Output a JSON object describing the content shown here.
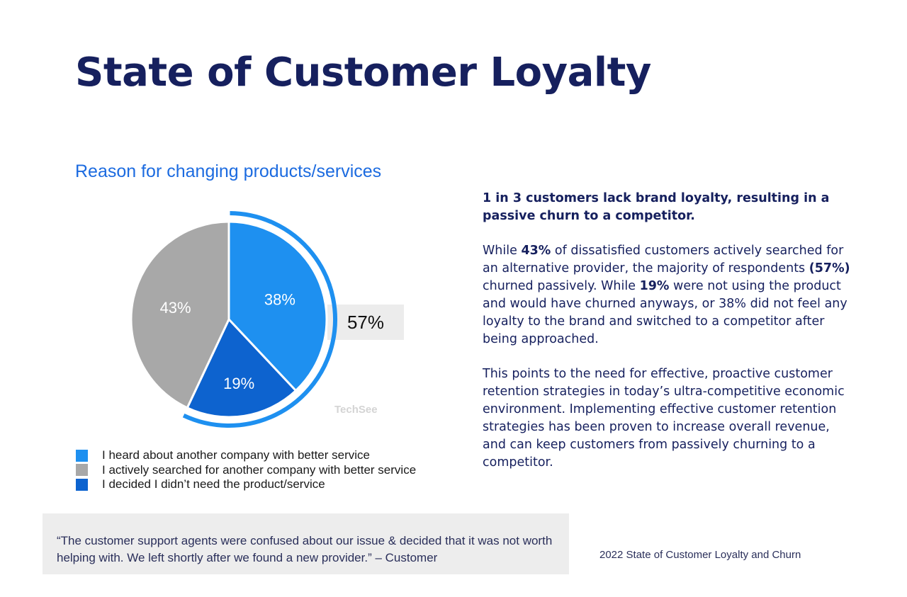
{
  "page": {
    "title": "State of Customer Loyalty"
  },
  "chart_data": {
    "type": "pie",
    "title": "Reason for changing products/services",
    "slices": [
      {
        "label": "I heard about another company with better service",
        "value": 38,
        "display": "38%",
        "color": "#1e90f0"
      },
      {
        "label": "I decided I didn’t need the product/service",
        "value": 19,
        "display": "19%",
        "color": "#0d63cf"
      },
      {
        "label": "I actively searched for another company with better service",
        "value": 43,
        "display": "43%",
        "color": "#a8a8a8"
      }
    ],
    "legend_order": [
      0,
      2,
      1
    ],
    "highlight": {
      "value": 57,
      "display": "57%",
      "note": "arc over passive churn slices",
      "color": "#1e90f0"
    },
    "watermark": "TechSee",
    "legend_position": "bottom-left"
  },
  "body": {
    "headline": "1 in 3 customers lack brand loyalty, resulting in a passive churn to a competitor.",
    "p1": {
      "t1": "While ",
      "b1": "43%",
      "t2": " of dissatisfied customers actively searched for an alternative provider, the majority of respondents ",
      "b2": "(57%)",
      "t3": " churned passively. While ",
      "b3": "19%",
      "t4": " were not using the product and would have churned anyways, or 38% did not feel any loyalty to the brand and switched to a competitor after being approached."
    },
    "p2": "This points to the need for effective, proactive customer retention strategies in today’s ultra-competitive economic environment. Implementing effective customer retention strategies has been proven to increase overall revenue, and can keep customers from passively churning to a competitor."
  },
  "quote": "“The customer support agents were confused about our issue & decided that it was not worth helping with. We left shortly after we found a new provider.” – Customer",
  "source": "2022 State of Customer Loyalty and Churn"
}
